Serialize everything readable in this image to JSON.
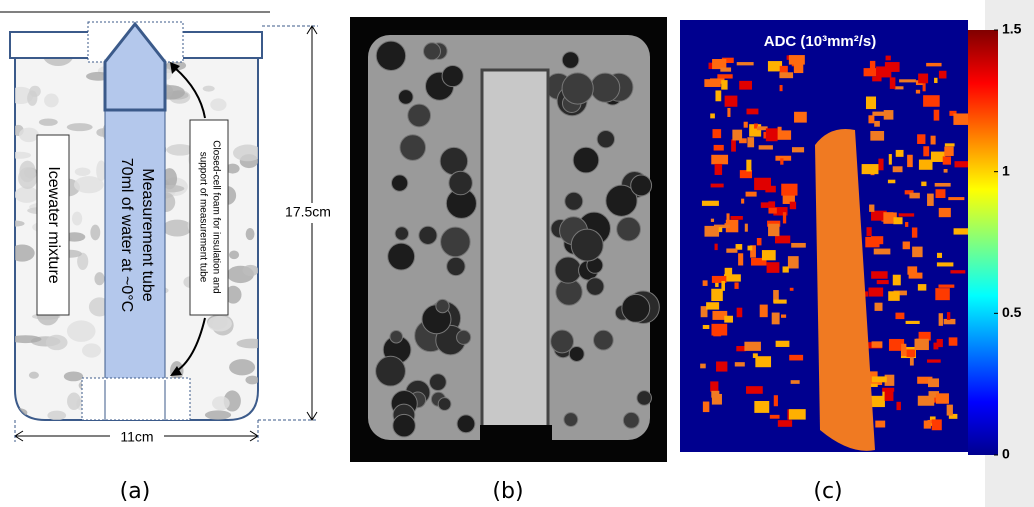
{
  "panel_a": {
    "caption": "(a)",
    "tube_label_1": "Measurement tube",
    "tube_label_2": "70ml of water at ~0°C",
    "foam_label_1": "Closed-cell foam for insulation and",
    "foam_label_2": "support of measurement tube",
    "mixture_label": "Icewater mixture",
    "height_label": "17.5cm",
    "width_label": "11cm"
  },
  "panel_b": {
    "caption": "(b)"
  },
  "panel_c": {
    "caption": "(c)",
    "title": "ADC (10³mm²/s)",
    "colorbar": {
      "lim": [
        0,
        1.5
      ],
      "ticks": [
        0,
        0.5,
        1,
        1.5
      ]
    }
  }
}
